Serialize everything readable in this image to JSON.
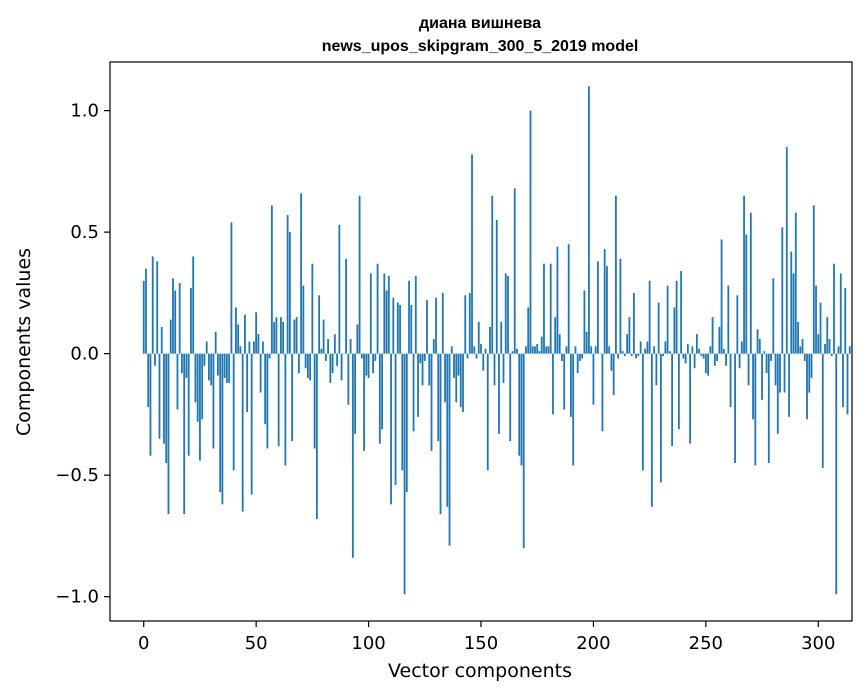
{
  "chart_data": {
    "type": "bar",
    "title": "диана вишнева",
    "subtitle": "news_upos_skipgram_300_5_2019 model",
    "xlabel": "Vector components",
    "ylabel": "Components values",
    "xlim": [
      -15,
      315
    ],
    "ylim": [
      -1.1,
      1.2
    ],
    "xticks": [
      0,
      50,
      100,
      150,
      200,
      250,
      300
    ],
    "xtick_labels": [
      "0",
      "50",
      "100",
      "150",
      "200",
      "250",
      "300"
    ],
    "yticks": [
      1.0,
      0.5,
      0.0,
      -0.5,
      -1.0
    ],
    "ytick_labels": [
      "1.0",
      "0.5",
      "0.0",
      "−0.5",
      "−1.0"
    ],
    "grid": false,
    "bar_color": "#1f77b4",
    "values": [
      0.3,
      0.35,
      -0.22,
      -0.42,
      0.4,
      -0.05,
      0.38,
      -0.35,
      0.11,
      -0.37,
      -0.45,
      -0.66,
      0.14,
      0.31,
      0.26,
      -0.23,
      0.29,
      -0.08,
      -0.66,
      -0.1,
      -0.42,
      0.27,
      0.4,
      -0.2,
      -0.28,
      -0.44,
      -0.27,
      -0.05,
      0.05,
      -0.11,
      -0.13,
      -0.39,
      0.09,
      -0.09,
      -0.57,
      -0.62,
      -0.1,
      -0.12,
      -0.12,
      0.54,
      -0.48,
      0.19,
      0.12,
      0.03,
      -0.65,
      0.16,
      -0.24,
      0.05,
      -0.58,
      0.05,
      0.17,
      0.08,
      -0.16,
      0.05,
      -0.29,
      -0.39,
      -0.02,
      0.61,
      0.13,
      0.15,
      -0.38,
      0.15,
      0.13,
      -0.46,
      0.57,
      0.5,
      -0.36,
      0.14,
      0.15,
      -0.08,
      0.66,
      0.28,
      -0.06,
      -0.1,
      -0.11,
      0.37,
      -0.39,
      -0.68,
      0.24,
      0.02,
      0.14,
      -0.03,
      0.06,
      -0.12,
      -0.08,
      0.08,
      -0.05,
      0.53,
      -0.11,
      0.0,
      0.39,
      -0.21,
      0.06,
      -0.84,
      -0.33,
      0.12,
      0.65,
      -0.02,
      -0.4,
      -0.09,
      -0.1,
      0.33,
      -0.08,
      -0.03,
      0.37,
      -0.37,
      -0.31,
      0.33,
      0.26,
      0.32,
      -0.62,
      0.23,
      -0.54,
      0.21,
      0.2,
      -0.48,
      -0.99,
      -0.57,
      0.3,
      0.2,
      -0.32,
      0.32,
      -0.26,
      -0.04,
      -0.13,
      -0.03,
      0.22,
      -0.13,
      -0.4,
      0.06,
      0.23,
      -0.36,
      -0.66,
      0.25,
      -0.2,
      -0.63,
      -0.79,
      0.03,
      -0.1,
      -0.2,
      -0.09,
      -0.22,
      -0.24,
      0.24,
      -0.02,
      0.25,
      0.82,
      0.03,
      -0.02,
      0.13,
      0.04,
      -0.07,
      0.02,
      -0.48,
      0.11,
      0.65,
      -0.13,
      0.55,
      -0.33,
      0.13,
      -0.12,
      0.33,
      0.32,
      -0.36,
      0.01,
      0.68,
      0.02,
      -0.42,
      -0.46,
      -0.8,
      0.03,
      0.19,
      1.0,
      0.03,
      0.03,
      0.04,
      0.01,
      0.07,
      0.37,
      0.03,
      0.03,
      0.37,
      -0.25,
      0.15,
      0.44,
      0.08,
      -0.03,
      -0.23,
      0.03,
      0.45,
      -0.26,
      -0.46,
      0.03,
      -0.08,
      -0.03,
      -0.02,
      0.26,
      0.09,
      1.1,
      0.03,
      -0.21,
      0.03,
      0.38,
      0.0,
      -0.32,
      0.43,
      0.36,
      0.03,
      -0.07,
      -0.17,
      0.65,
      -0.02,
      0.39,
      0.01,
      -0.01,
      0.08,
      0.15,
      -0.01,
      0.25,
      -0.02,
      -0.01,
      0.05,
      -0.48,
      0.02,
      0.05,
      0.3,
      -0.63,
      0.03,
      -0.13,
      0.21,
      -0.53,
      -0.01,
      0.05,
      0.28,
      0.01,
      -0.38,
      0.19,
      0.3,
      -0.31,
      0.34,
      -0.02,
      -0.04,
      0.04,
      -0.37,
      0.03,
      -0.06,
      0.08,
      0.02,
      -0.01,
      -0.02,
      -0.08,
      -0.09,
      0.03,
      0.15,
      -0.05,
      -0.03,
      0.11,
      0.47,
      0.02,
      -0.05,
      0.28,
      -0.22,
      0.0,
      -0.45,
      0.24,
      -0.06,
      0.05,
      0.65,
      0.49,
      -0.13,
      0.58,
      -0.27,
      -0.46,
      0.1,
      0.06,
      -0.19,
      0.01,
      -0.08,
      -0.45,
      -0.03,
      0.31,
      -0.13,
      -0.33,
      -0.16,
      0.52,
      -0.16,
      0.85,
      -0.26,
      0.42,
      0.33,
      0.58,
      0.13,
      0.03,
      0.06,
      -0.03,
      -0.27,
      -0.16,
      -0.1,
      0.61,
      0.28,
      0.08,
      0.21,
      -0.47,
      0.04,
      0.15,
      0.06,
      -0.01,
      0.37,
      -0.99,
      0.03,
      0.33,
      -0.22,
      0.27,
      -0.25,
      0.03
    ]
  }
}
